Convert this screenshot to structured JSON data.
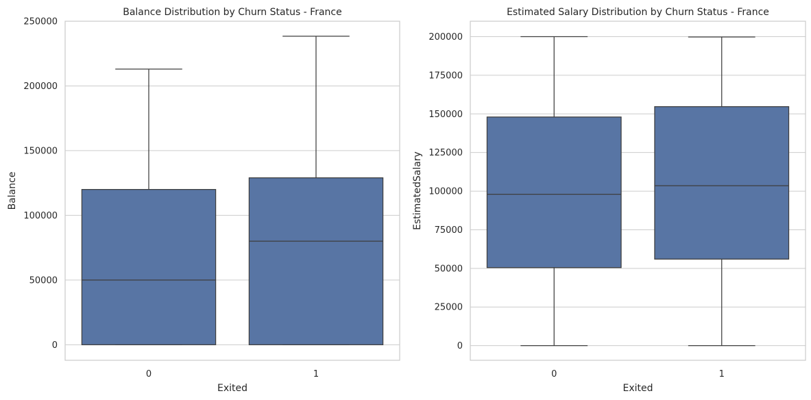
{
  "colors": {
    "box_fill": "#5875a4",
    "line": "#3d3d3d",
    "grid": "#cccccc",
    "text": "#262626"
  },
  "chart_data": [
    {
      "type": "box",
      "title": "Balance Distribution by Churn Status - France",
      "xlabel": "Exited",
      "ylabel": "Balance",
      "categories": [
        "0",
        "1"
      ],
      "ylim": [
        -12000,
        250000
      ],
      "yticks": [
        0,
        50000,
        100000,
        150000,
        200000,
        250000
      ],
      "ytick_labels": [
        "0",
        "50000",
        "100000",
        "150000",
        "200000",
        "250000"
      ],
      "boxes": [
        {
          "category": "0",
          "whisker_low": 0,
          "q1": 0,
          "median": 50000,
          "q3": 120000,
          "whisker_high": 213000
        },
        {
          "category": "1",
          "whisker_low": 0,
          "q1": 0,
          "median": 80000,
          "q3": 129000,
          "whisker_high": 238400
        }
      ],
      "grid": true
    },
    {
      "type": "box",
      "title": "Estimated Salary Distribution by Churn Status - France",
      "xlabel": "Exited",
      "ylabel": "EstimatedSalary",
      "categories": [
        "0",
        "1"
      ],
      "ylim": [
        -9500,
        210000
      ],
      "yticks": [
        0,
        25000,
        50000,
        75000,
        100000,
        125000,
        150000,
        175000,
        200000
      ],
      "ytick_labels": [
        "0",
        "25000",
        "50000",
        "75000",
        "100000",
        "125000",
        "150000",
        "175000",
        "200000"
      ],
      "boxes": [
        {
          "category": "0",
          "whisker_low": 0,
          "q1": 50500,
          "median": 98000,
          "q3": 148000,
          "whisker_high": 200000
        },
        {
          "category": "1",
          "whisker_low": 0,
          "q1": 56000,
          "median": 103500,
          "q3": 154700,
          "whisker_high": 199800
        }
      ],
      "grid": true
    }
  ]
}
